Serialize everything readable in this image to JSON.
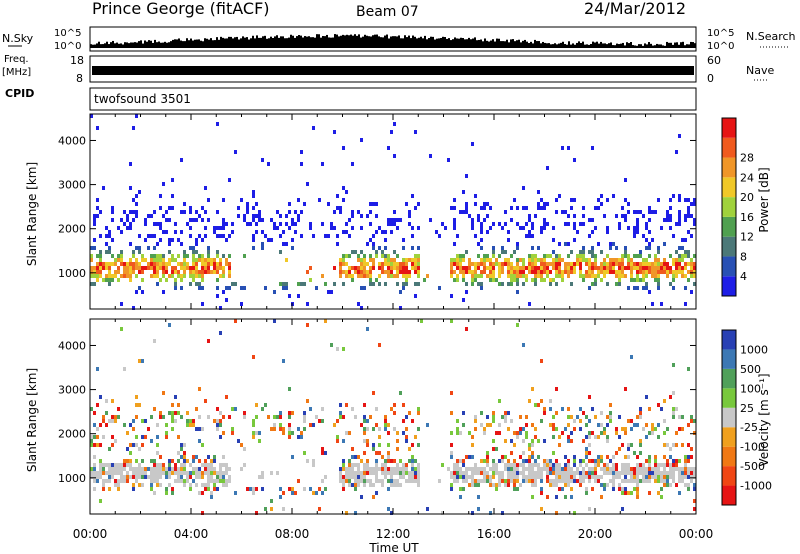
{
  "header": {
    "station": "Prince George (fitACF)",
    "beam": "Beam 07",
    "date": "24/Mar/2012"
  },
  "top_panel": {
    "left_label_1": "N.Sky",
    "left_label_2": "Freq.",
    "left_label_3": "[MHz]",
    "cpid_label": "CPID",
    "cpid_value": "twofsound 3501",
    "right_label_1": "N.Search",
    "right_label_2": "Nave",
    "nsky_ticks": [
      "10^5",
      "10^0"
    ],
    "freq_ticks": [
      "18",
      "8"
    ],
    "right_ticks_1": [
      "10^5",
      "10^0"
    ],
    "right_ticks_2": [
      "60",
      "0"
    ]
  },
  "chart_data": [
    {
      "type": "heatmap",
      "name": "power",
      "ylabel": "Slant Range [km]",
      "xlabel": "",
      "yticks": [
        1000,
        2000,
        3000,
        4000
      ],
      "ylim": [
        180,
        4600
      ],
      "colorbar": {
        "label": "Power [dB]",
        "ticks": [
          "4",
          "8",
          "12",
          "16",
          "20",
          "24",
          "28"
        ],
        "colors": [
          "#1e1ee6",
          "#2850b4",
          "#4b7878",
          "#50a050",
          "#a0d23c",
          "#f0c828",
          "#f09628",
          "#f05a1e",
          "#e61414"
        ]
      }
    },
    {
      "type": "heatmap",
      "name": "velocity",
      "ylabel": "Slant Range [km]",
      "xlabel": "Time UT",
      "yticks": [
        1000,
        2000,
        3000,
        4000
      ],
      "ylim": [
        180,
        4600
      ],
      "xticks": [
        "00:00",
        "04:00",
        "08:00",
        "12:00",
        "16:00",
        "20:00",
        "00:00"
      ],
      "colorbar": {
        "label": "Velocity [m s⁻¹]",
        "ticks": [
          "1000",
          "500",
          "100",
          "25",
          "-25",
          "-100",
          "-500",
          "-1000"
        ],
        "colors": [
          "#2840b4",
          "#3c78b4",
          "#50a05a",
          "#78c83c",
          "#c8c8c8",
          "#f0a01e",
          "#f07814",
          "#f04614",
          "#e61414"
        ]
      }
    }
  ]
}
